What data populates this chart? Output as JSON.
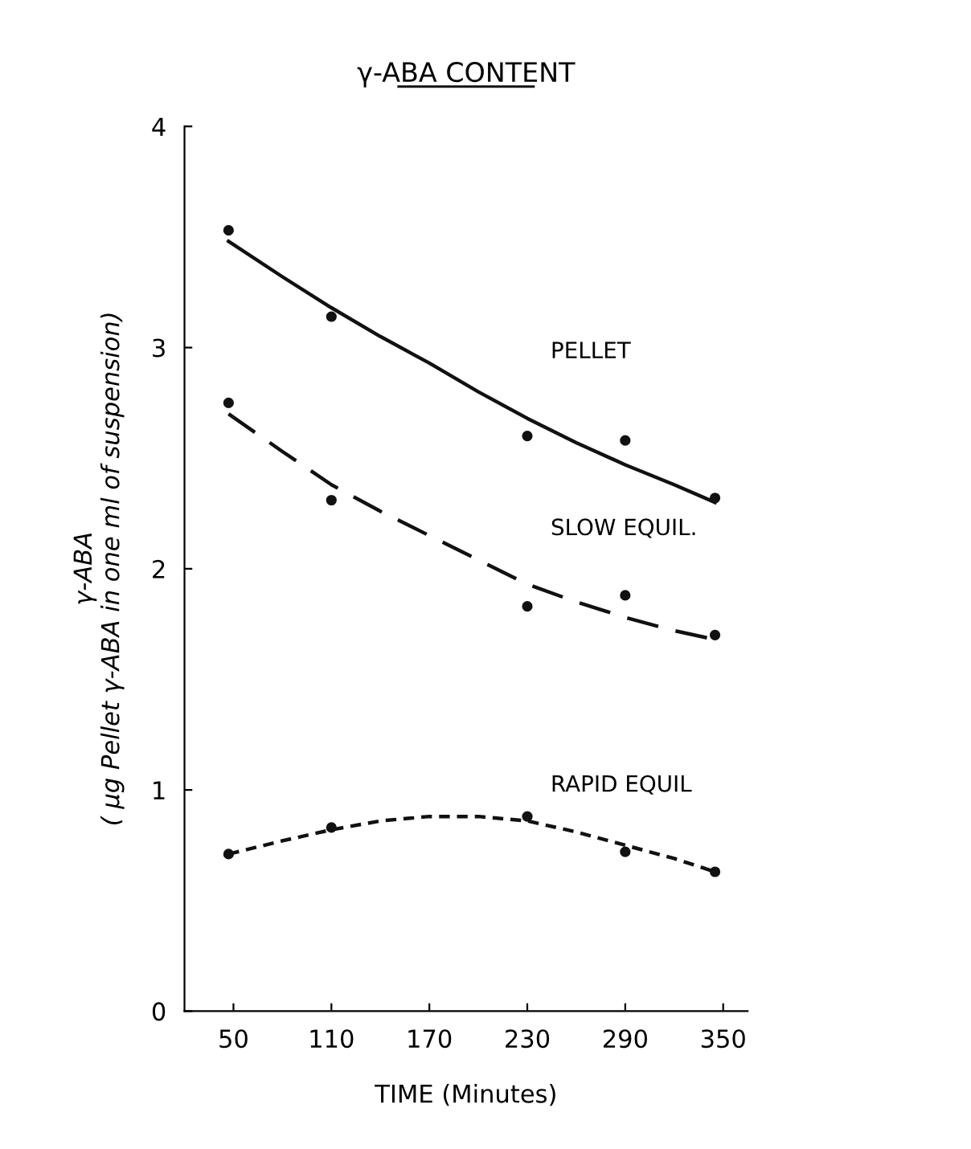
{
  "chart_data": {
    "type": "scatter",
    "title": "γ-ABA CONTENT",
    "xlabel": "TIME (Minutes)",
    "ylabel": "γ-ABA\n( μg Pellet γ-ABA in one ml of suspension)",
    "xlim": [
      20,
      365
    ],
    "ylim": [
      0,
      4
    ],
    "xticks": [
      50,
      110,
      170,
      230,
      290,
      350
    ],
    "yticks": [
      0,
      1,
      2,
      3,
      4
    ],
    "grid": false,
    "legend": false,
    "series": [
      {
        "color": "#111111",
        "marker": "circle",
        "x": [
          47,
          110,
          230,
          290,
          345
        ],
        "values": [
          3.53,
          3.14,
          2.6,
          2.58,
          2.32
        ]
      },
      {
        "color": "#111111",
        "marker": "circle",
        "x": [
          47,
          110,
          230,
          290,
          345
        ],
        "values": [
          2.75,
          2.31,
          1.83,
          1.88,
          1.7
        ]
      },
      {
        "color": "#111111",
        "marker": "circle",
        "x": [
          47,
          110,
          230,
          290,
          345
        ],
        "values": [
          0.71,
          0.83,
          0.88,
          0.72,
          0.63
        ]
      },
      {
        "type": "line",
        "color": "#111111",
        "line_style": "solid",
        "x": [
          47,
          80,
          110,
          140,
          170,
          200,
          230,
          260,
          290,
          320,
          345
        ],
        "values": [
          3.48,
          3.32,
          3.18,
          3.05,
          2.93,
          2.8,
          2.68,
          2.57,
          2.47,
          2.38,
          2.3
        ]
      },
      {
        "type": "line",
        "color": "#111111",
        "line_style": "dashed",
        "x": [
          47,
          80,
          110,
          140,
          170,
          200,
          230,
          260,
          290,
          320,
          345
        ],
        "values": [
          2.7,
          2.53,
          2.38,
          2.26,
          2.15,
          2.04,
          1.93,
          1.85,
          1.78,
          1.72,
          1.68
        ]
      },
      {
        "type": "line",
        "color": "#111111",
        "line_style": "dotted",
        "x": [
          47,
          80,
          110,
          140,
          170,
          200,
          230,
          260,
          290,
          320,
          345
        ],
        "values": [
          0.71,
          0.77,
          0.82,
          0.86,
          0.88,
          0.88,
          0.86,
          0.81,
          0.75,
          0.69,
          0.63
        ]
      }
    ],
    "annotations": [
      "PELLET",
      "SLOW EQUIL.",
      "RAPID EQUIL"
    ]
  }
}
